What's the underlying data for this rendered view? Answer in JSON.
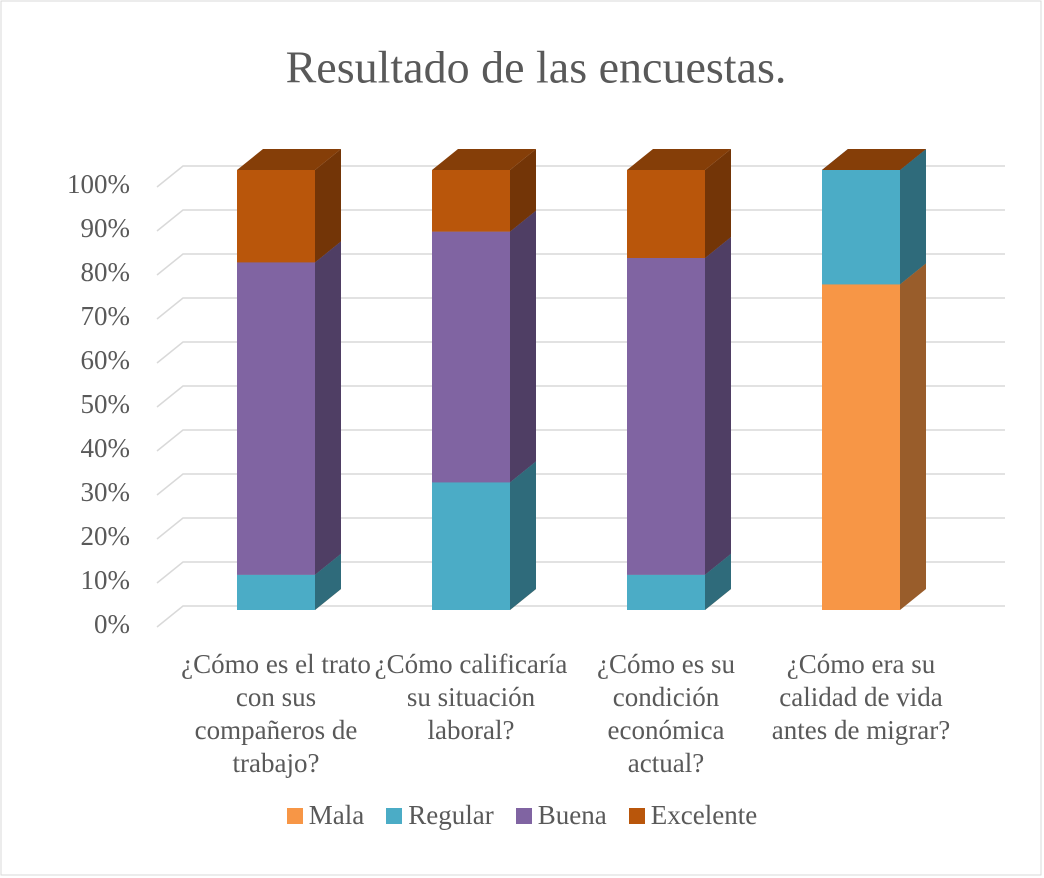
{
  "chart_data": {
    "type": "bar3d_stacked",
    "title": "Resultado de las encuestas.",
    "categories": [
      "¿Cómo es el trato con sus compañeros de trabajo?",
      "¿Cómo calificaría su situación laboral?",
      "¿Cómo es su condición económica actual?",
      "¿Cómo era su calidad de vida antes de migrar?"
    ],
    "series": [
      {
        "name": "Mala",
        "color": "#f79646",
        "values": [
          0,
          0,
          0,
          74
        ]
      },
      {
        "name": "Regular",
        "color": "#4bacc6",
        "values": [
          8,
          29,
          8,
          26
        ]
      },
      {
        "name": "Buena",
        "color": "#8064a2",
        "values": [
          71,
          57,
          72,
          0
        ]
      },
      {
        "name": "Excelente",
        "color": "#b9560b",
        "values": [
          21,
          14,
          20,
          0
        ]
      }
    ],
    "ylim": [
      0,
      100
    ],
    "yticks": [
      {
        "value": 0,
        "label": "0%"
      },
      {
        "value": 10,
        "label": "10%"
      },
      {
        "value": 20,
        "label": "20%"
      },
      {
        "value": 30,
        "label": "30%"
      },
      {
        "value": 40,
        "label": "40%"
      },
      {
        "value": 50,
        "label": "50%"
      },
      {
        "value": 60,
        "label": "60%"
      },
      {
        "value": 70,
        "label": "70%"
      },
      {
        "value": 80,
        "label": "80%"
      },
      {
        "value": 90,
        "label": "90%"
      },
      {
        "value": 100,
        "label": "100%"
      }
    ],
    "grid": true,
    "legend": "bottom"
  }
}
